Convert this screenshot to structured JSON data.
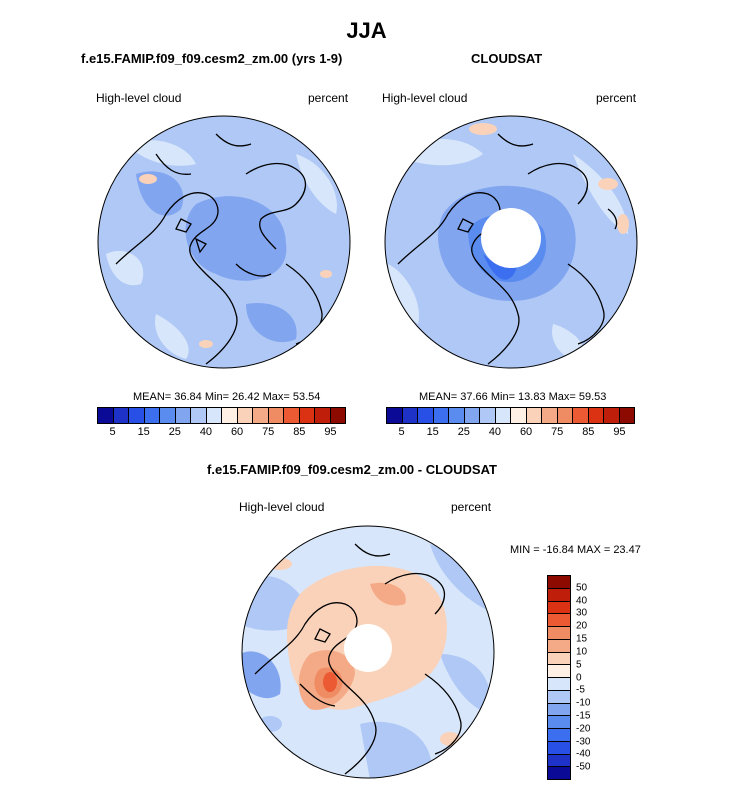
{
  "title": "JJA",
  "panel1": {
    "title": "f.e15.FAMIP.f09_f09.cesm2_zm.00 (yrs 1-9)",
    "left_label": "High-level cloud",
    "right_label": "percent",
    "stats": "MEAN=  36.84  Min=  26.42  Max=  53.54"
  },
  "panel2": {
    "title": "CLOUDSAT",
    "left_label": "High-level cloud",
    "right_label": "percent",
    "stats": "MEAN=  37.66  Min=  13.83  Max=  59.53"
  },
  "panel3": {
    "title": "f.e15.FAMIP.f09_f09.cesm2_zm.00 - CLOUDSAT",
    "left_label": "High-level cloud",
    "right_label": "percent",
    "stats": "MIN = -16.84 MAX =  23.47"
  },
  "colorbar_abs": {
    "colors": [
      "#0a0a96",
      "#1e32c8",
      "#2850e6",
      "#3c6ef0",
      "#5a8cf0",
      "#82a5f0",
      "#afc8f5",
      "#d7e6fa",
      "#fff0e6",
      "#fad2b9",
      "#f5aa87",
      "#f08c64",
      "#eb5a32",
      "#dc3214",
      "#be1e0a",
      "#8c0a00"
    ],
    "ticks": [
      "5",
      "15",
      "25",
      "40",
      "60",
      "75",
      "85",
      "95"
    ]
  },
  "colorbar_diff": {
    "colors": [
      "#8c0a00",
      "#be1e0a",
      "#dc3214",
      "#eb5a32",
      "#f08c64",
      "#f5aa87",
      "#fad2b9",
      "#fff0e6",
      "#d7e6fa",
      "#afc8f5",
      "#82a5f0",
      "#5a8cf0",
      "#3c6ef0",
      "#2850e6",
      "#1e32c8",
      "#0a0a96"
    ],
    "ticks": [
      "50",
      "40",
      "30",
      "20",
      "15",
      "10",
      "5",
      "0",
      "-5",
      "-10",
      "-15",
      "-20",
      "-30",
      "-40",
      "-50"
    ]
  },
  "map_colors": {
    "base_blue": "#afc8f5",
    "mid_blue": "#82a5f0",
    "deep_blue": "#5a8cf0",
    "pale_blue": "#d7e6fa",
    "pale_red": "#fad2b9",
    "mid_red": "#f5aa87",
    "deep_red": "#f08c64",
    "darkest_red": "#eb5a32"
  }
}
